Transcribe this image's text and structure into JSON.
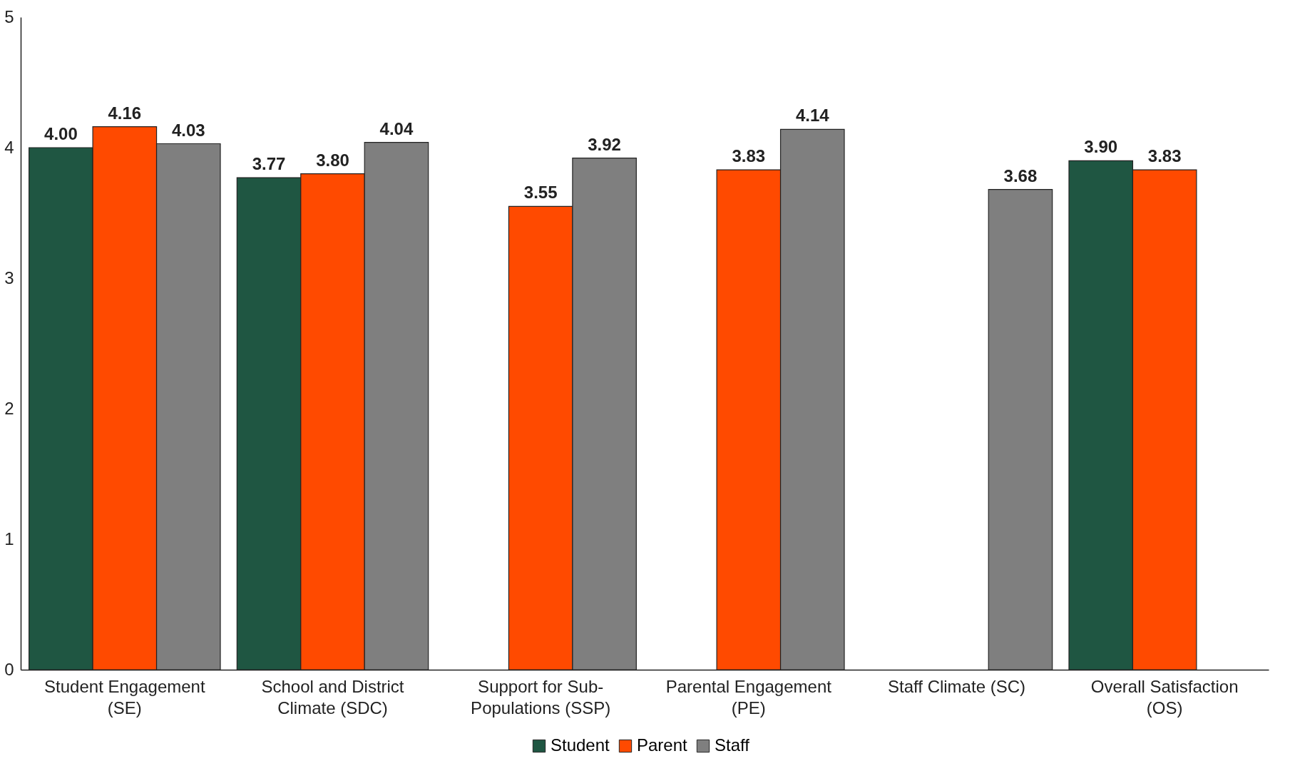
{
  "chart_data": {
    "type": "bar",
    "categories": [
      "Student Engagement (SE)",
      "School and District Climate (SDC)",
      "Support for Sub-Populations (SSP)",
      "Parental Engagement (PE)",
      "Staff Climate (SC)",
      "Overall Satisfaction (OS)"
    ],
    "series": [
      {
        "name": "Student",
        "color": "#1f5642",
        "values": [
          4.0,
          3.77,
          null,
          null,
          null,
          3.9
        ],
        "value_labels": [
          "4.00",
          "3.77",
          null,
          null,
          null,
          "3.90"
        ]
      },
      {
        "name": "Parent",
        "color": "#ff4a00",
        "values": [
          4.16,
          3.8,
          3.55,
          3.83,
          null,
          3.83
        ],
        "value_labels": [
          "4.16",
          "3.80",
          "3.55",
          "3.83",
          null,
          "3.83"
        ]
      },
      {
        "name": "Staff",
        "color": "#7f7f7f",
        "values": [
          4.03,
          4.04,
          3.92,
          4.14,
          3.68,
          null
        ],
        "value_labels": [
          "4.03",
          "4.04",
          "3.92",
          "4.14",
          "3.68",
          null
        ]
      }
    ],
    "ylim": [
      0,
      5
    ],
    "yticks": [
      0,
      1,
      2,
      3,
      4,
      5
    ],
    "grid": false,
    "legend": "bottom"
  }
}
